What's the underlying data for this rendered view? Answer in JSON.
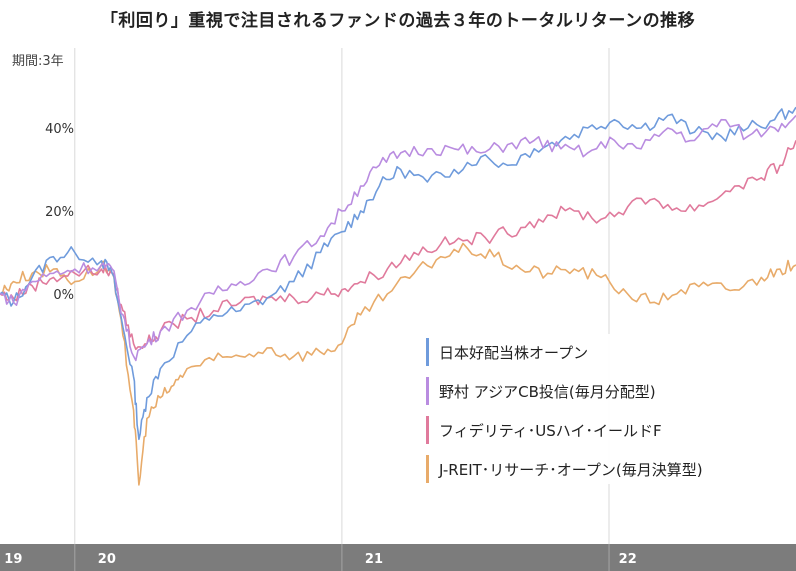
{
  "title": "「利回り」重視で注目されるファンドの過去３年のトータルリターンの推移",
  "period_label": "期間:3年",
  "chart_data": {
    "type": "line",
    "ylim": [
      -50,
      60
    ],
    "y_ticks": [
      {
        "value": 40,
        "label": "40%"
      },
      {
        "value": 20,
        "label": "20%"
      },
      {
        "value": 0,
        "label": "0%"
      }
    ],
    "x_labels": [
      {
        "t": 0.05,
        "label": "19"
      },
      {
        "t": 0.4,
        "label": "20"
      },
      {
        "t": 1.4,
        "label": "21"
      },
      {
        "t": 2.35,
        "label": "22"
      }
    ],
    "x_dividers": [
      0.28,
      1.28,
      2.28
    ],
    "xlim": [
      0,
      2.98
    ],
    "grid": "vertical",
    "legend_position": "center-right",
    "series": [
      {
        "name": "日本好配当株オープン",
        "color": "#6f9bdc",
        "points": [
          [
            0,
            0
          ],
          [
            0.05,
            -2
          ],
          [
            0.12,
            4
          ],
          [
            0.2,
            9
          ],
          [
            0.28,
            10
          ],
          [
            0.38,
            8
          ],
          [
            0.42,
            5
          ],
          [
            0.46,
            -8
          ],
          [
            0.5,
            -20
          ],
          [
            0.52,
            -35
          ],
          [
            0.55,
            -25
          ],
          [
            0.6,
            -18
          ],
          [
            0.7,
            -10
          ],
          [
            0.8,
            -5
          ],
          [
            0.9,
            -4
          ],
          [
            1.0,
            -1
          ],
          [
            1.1,
            3
          ],
          [
            1.2,
            10
          ],
          [
            1.28,
            15
          ],
          [
            1.35,
            20
          ],
          [
            1.42,
            26
          ],
          [
            1.5,
            30
          ],
          [
            1.6,
            27
          ],
          [
            1.7,
            30
          ],
          [
            1.8,
            33
          ],
          [
            1.9,
            31
          ],
          [
            2.0,
            35
          ],
          [
            2.1,
            37
          ],
          [
            2.2,
            40
          ],
          [
            2.3,
            42
          ],
          [
            2.4,
            40
          ],
          [
            2.5,
            43
          ],
          [
            2.6,
            39
          ],
          [
            2.7,
            38
          ],
          [
            2.8,
            40
          ],
          [
            2.9,
            42
          ],
          [
            2.98,
            45
          ]
        ]
      },
      {
        "name": "野村 アジアCB投信(毎月分配型)",
        "color": "#b98ce0",
        "points": [
          [
            0,
            0
          ],
          [
            0.05,
            -2
          ],
          [
            0.12,
            3
          ],
          [
            0.2,
            5
          ],
          [
            0.28,
            6
          ],
          [
            0.38,
            7
          ],
          [
            0.42,
            6
          ],
          [
            0.46,
            -5
          ],
          [
            0.5,
            -15
          ],
          [
            0.55,
            -12
          ],
          [
            0.6,
            -9
          ],
          [
            0.7,
            -4
          ],
          [
            0.8,
            0
          ],
          [
            0.9,
            3
          ],
          [
            1.0,
            6
          ],
          [
            1.1,
            9
          ],
          [
            1.2,
            14
          ],
          [
            1.28,
            20
          ],
          [
            1.35,
            26
          ],
          [
            1.42,
            31
          ],
          [
            1.5,
            34
          ],
          [
            1.6,
            35
          ],
          [
            1.7,
            35
          ],
          [
            1.8,
            34
          ],
          [
            1.9,
            36
          ],
          [
            2.0,
            37
          ],
          [
            2.1,
            35
          ],
          [
            2.2,
            34
          ],
          [
            2.3,
            37
          ],
          [
            2.4,
            35
          ],
          [
            2.5,
            40
          ],
          [
            2.6,
            37
          ],
          [
            2.7,
            42
          ],
          [
            2.8,
            38
          ],
          [
            2.9,
            40
          ],
          [
            2.98,
            43
          ]
        ]
      },
      {
        "name": "フィデリティ･USハイ･イールドF",
        "color": "#e07a9c",
        "points": [
          [
            0,
            0
          ],
          [
            0.05,
            -1
          ],
          [
            0.12,
            2
          ],
          [
            0.2,
            4
          ],
          [
            0.28,
            5
          ],
          [
            0.38,
            6
          ],
          [
            0.42,
            5
          ],
          [
            0.46,
            -4
          ],
          [
            0.5,
            -12
          ],
          [
            0.55,
            -12
          ],
          [
            0.6,
            -9
          ],
          [
            0.7,
            -6
          ],
          [
            0.8,
            -4
          ],
          [
            0.9,
            -2
          ],
          [
            1.0,
            -1
          ],
          [
            1.1,
            -1
          ],
          [
            1.2,
            0
          ],
          [
            1.28,
            1
          ],
          [
            1.35,
            3
          ],
          [
            1.45,
            6
          ],
          [
            1.55,
            10
          ],
          [
            1.65,
            12
          ],
          [
            1.75,
            13
          ],
          [
            1.85,
            14
          ],
          [
            1.95,
            16
          ],
          [
            2.05,
            19
          ],
          [
            2.15,
            20
          ],
          [
            2.25,
            18
          ],
          [
            2.35,
            21
          ],
          [
            2.45,
            23
          ],
          [
            2.55,
            20
          ],
          [
            2.65,
            22
          ],
          [
            2.75,
            26
          ],
          [
            2.85,
            28
          ],
          [
            2.92,
            31
          ],
          [
            2.98,
            37
          ]
        ]
      },
      {
        "name": "J-REIT･リサーチ･オープン(毎月決算型)",
        "color": "#e8ab6a",
        "points": [
          [
            0,
            0
          ],
          [
            0.05,
            3
          ],
          [
            0.12,
            5
          ],
          [
            0.2,
            6
          ],
          [
            0.28,
            3
          ],
          [
            0.38,
            7
          ],
          [
            0.42,
            5
          ],
          [
            0.46,
            -10
          ],
          [
            0.5,
            -28
          ],
          [
            0.52,
            -46
          ],
          [
            0.55,
            -30
          ],
          [
            0.6,
            -25
          ],
          [
            0.65,
            -22
          ],
          [
            0.7,
            -18
          ],
          [
            0.8,
            -16
          ],
          [
            0.9,
            -15
          ],
          [
            1.0,
            -13
          ],
          [
            1.1,
            -15
          ],
          [
            1.2,
            -14
          ],
          [
            1.28,
            -12
          ],
          [
            1.35,
            -5
          ],
          [
            1.45,
            0
          ],
          [
            1.55,
            5
          ],
          [
            1.65,
            9
          ],
          [
            1.75,
            11
          ],
          [
            1.85,
            9
          ],
          [
            1.95,
            6
          ],
          [
            2.05,
            5
          ],
          [
            2.15,
            6
          ],
          [
            2.25,
            4
          ],
          [
            2.35,
            0
          ],
          [
            2.45,
            -2
          ],
          [
            2.55,
            1
          ],
          [
            2.65,
            2
          ],
          [
            2.75,
            1
          ],
          [
            2.85,
            4
          ],
          [
            2.92,
            6
          ],
          [
            2.98,
            7
          ]
        ]
      }
    ]
  }
}
